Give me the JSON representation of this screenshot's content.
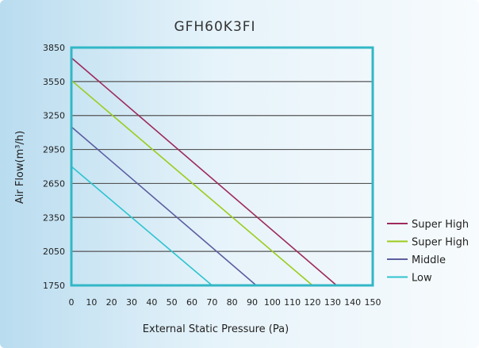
{
  "chart_data": {
    "type": "line",
    "title": "GFH60K3FI",
    "xlabel": "External Static Pressure (Pa)",
    "ylabel": "Air Flow(m³/h)",
    "xlim": [
      0,
      150
    ],
    "ylim": [
      1750,
      3850
    ],
    "x_ticks": [
      0,
      10,
      20,
      30,
      40,
      50,
      60,
      70,
      80,
      90,
      100,
      110,
      120,
      130,
      140,
      150
    ],
    "y_ticks": [
      1750,
      2050,
      2350,
      2650,
      2950,
      3250,
      3550,
      3850
    ],
    "grid": "horizontal",
    "legend_position": "right",
    "series": [
      {
        "name": "Super High",
        "color": "#9e2a5c",
        "points": [
          [
            0,
            3760
          ],
          [
            132,
            1750
          ]
        ]
      },
      {
        "name": "Super High",
        "color": "#9bcc1d",
        "points": [
          [
            0,
            3560
          ],
          [
            120,
            1750
          ]
        ]
      },
      {
        "name": "Middle",
        "color": "#5c5ea0",
        "points": [
          [
            0,
            3150
          ],
          [
            92,
            1750
          ]
        ]
      },
      {
        "name": "Low",
        "color": "#2ec4d0",
        "points": [
          [
            0,
            2800
          ],
          [
            70,
            1750
          ]
        ]
      }
    ]
  }
}
